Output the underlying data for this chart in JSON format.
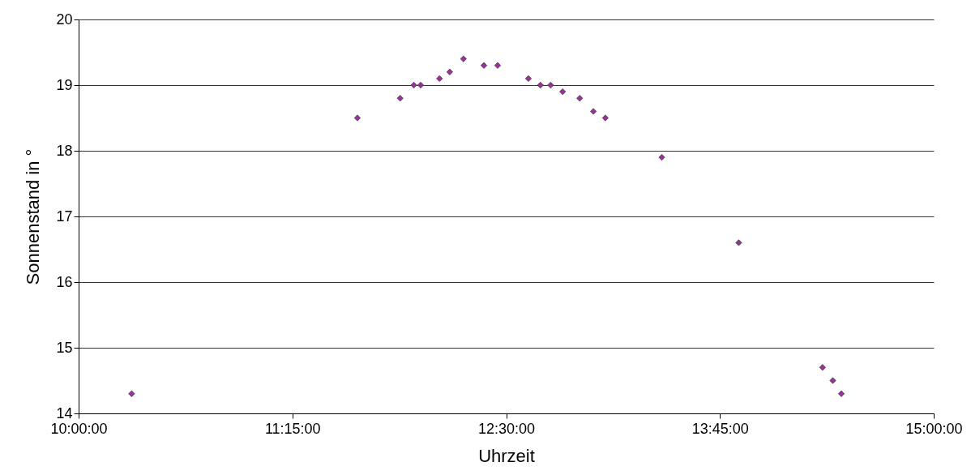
{
  "chart_data": {
    "type": "scatter",
    "xlabel": "Uhrzeit",
    "ylabel": "Sonnenstand in °",
    "x": [
      10.31,
      11.63,
      11.88,
      11.96,
      12.0,
      12.11,
      12.17,
      12.25,
      12.37,
      12.45,
      12.63,
      12.7,
      12.76,
      12.83,
      12.93,
      13.01,
      13.08,
      13.41,
      13.86,
      14.35,
      14.41,
      14.46
    ],
    "series": [
      {
        "color": "#993399",
        "values": [
          14.3,
          18.5,
          18.8,
          19.0,
          19.0,
          19.1,
          19.2,
          19.4,
          19.3,
          19.3,
          19.1,
          19.0,
          19.0,
          18.9,
          18.8,
          18.6,
          18.5,
          17.9,
          16.6,
          14.7,
          14.5,
          14.3
        ]
      }
    ],
    "xlim": [
      10,
      15
    ],
    "xticks": [
      {
        "value": 10,
        "label": "10:00:00"
      },
      {
        "value": 11.25,
        "label": "11:15:00"
      },
      {
        "value": 12.5,
        "label": "12:30:00"
      },
      {
        "value": 13.75,
        "label": "13:45:00"
      },
      {
        "value": 15,
        "label": "15:00:00"
      }
    ],
    "ylim": [
      14,
      20
    ],
    "yticks": [
      14,
      15,
      16,
      17,
      18,
      19,
      20
    ],
    "grid": "y",
    "marker": "diamond",
    "legend": false
  }
}
